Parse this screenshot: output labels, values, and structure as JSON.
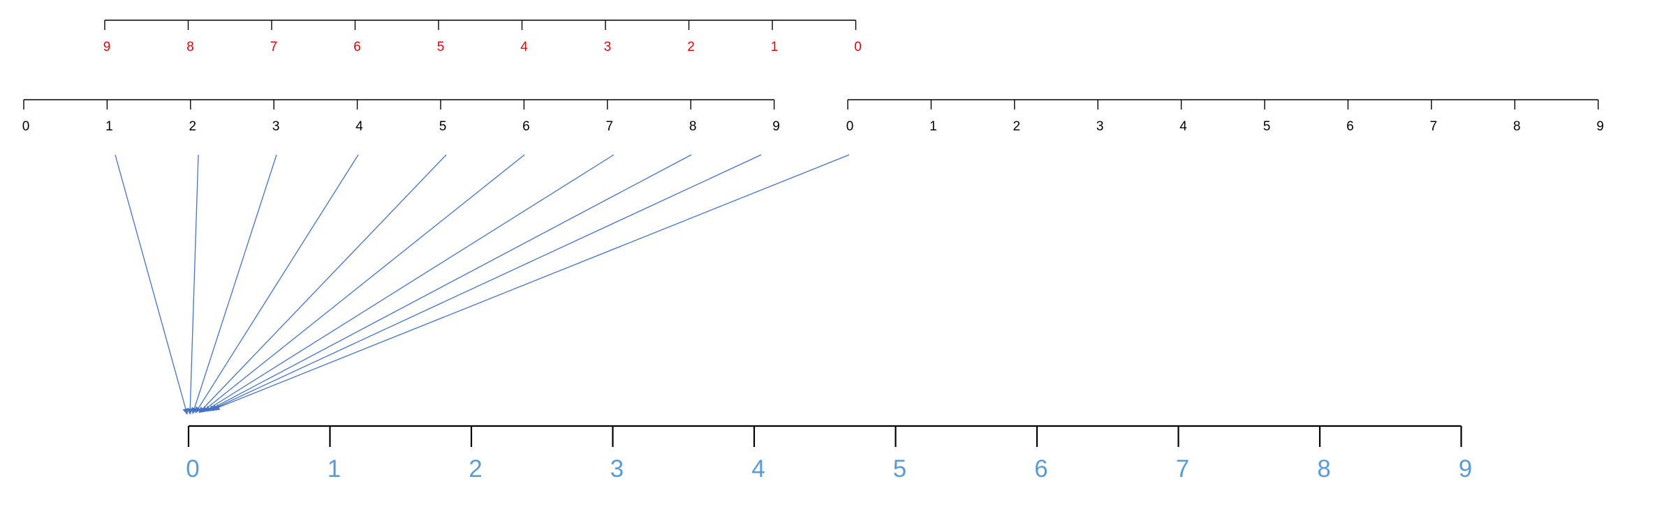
{
  "colors": {
    "axis": "#000000",
    "red_labels": "#e8000b",
    "black_labels": "#000000",
    "blue_labels": "#5b9bd5",
    "arrows": "#4472c4"
  },
  "red_scale": {
    "labels": [
      "9",
      "8",
      "7",
      "6",
      "5",
      "4",
      "3",
      "2",
      "1",
      "0"
    ]
  },
  "left_scale": {
    "labels": [
      "0",
      "1",
      "2",
      "3",
      "4",
      "5",
      "6",
      "7",
      "8",
      "9"
    ]
  },
  "right_scale": {
    "labels": [
      "0",
      "1",
      "2",
      "3",
      "4",
      "5",
      "6",
      "7",
      "8",
      "9"
    ]
  },
  "bottom_scale": {
    "labels": [
      "0",
      "1",
      "2",
      "3",
      "4",
      "5",
      "6",
      "7",
      "8",
      "9"
    ]
  },
  "arrows": {
    "from": "left_scale ticks 1–9 and right_scale tick 0",
    "to": "bottom_scale near 0",
    "count": 10
  }
}
